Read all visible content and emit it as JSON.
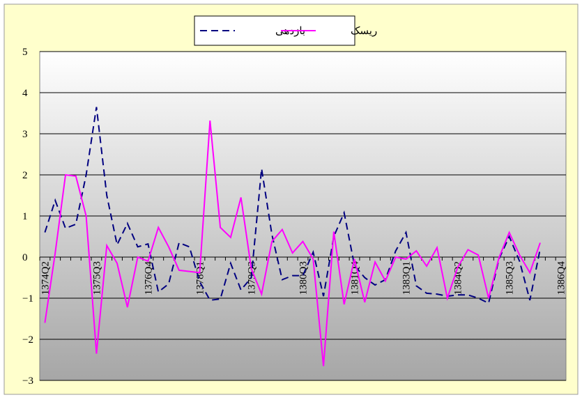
{
  "chart_data": {
    "type": "line",
    "categories": [
      "1374Q2",
      null,
      null,
      null,
      null,
      "1375Q3",
      null,
      null,
      null,
      null,
      "1376Q4",
      null,
      null,
      null,
      null,
      "1378Q1",
      null,
      null,
      null,
      null,
      "1379Q3",
      null,
      null,
      null,
      null,
      "1380Q3",
      null,
      null,
      null,
      null,
      "1381Q4",
      null,
      null,
      null,
      null,
      "1383Q1",
      null,
      null,
      null,
      null,
      "1384Q2",
      null,
      null,
      null,
      null,
      "1385Q3",
      null,
      null,
      null,
      null,
      "1386Q4"
    ],
    "series": [
      {
        "name": "بازدهی",
        "color": "#000080",
        "dash": true,
        "values": [
          0.6,
          1.38,
          0.7,
          0.8,
          2.0,
          3.65,
          1.5,
          0.3,
          0.82,
          0.25,
          0.32,
          -0.85,
          -0.65,
          0.35,
          0.25,
          -0.6,
          -1.05,
          -1.02,
          -0.15,
          -0.8,
          -0.5,
          2.15,
          0.55,
          -0.55,
          -0.45,
          -0.45,
          0.12,
          -0.95,
          0.5,
          1.08,
          -0.2,
          -0.5,
          -0.68,
          -0.55,
          0.15,
          0.6,
          -0.7,
          -0.88,
          -0.9,
          -0.95,
          -0.92,
          -0.92,
          -1.0,
          -1.12,
          -0.05,
          0.5,
          -0.1,
          -1.05,
          0.2,
          null,
          null
        ]
      },
      {
        "name": "ریسک",
        "color": "#ff00ff",
        "dash": false,
        "values": [
          -1.6,
          0.1,
          2.0,
          1.97,
          1.0,
          -2.35,
          0.28,
          -0.15,
          -1.22,
          0.0,
          -0.1,
          0.72,
          0.25,
          -0.32,
          -0.35,
          -0.38,
          3.32,
          0.72,
          0.48,
          1.45,
          -0.28,
          -0.9,
          0.38,
          0.67,
          0.1,
          0.38,
          -0.05,
          -2.65,
          0.62,
          -1.15,
          -0.05,
          -1.1,
          -0.12,
          -0.58,
          0.0,
          -0.05,
          0.15,
          -0.22,
          0.23,
          -1.0,
          -0.25,
          0.18,
          0.05,
          -1.0,
          -0.02,
          0.6,
          0.05,
          -0.38,
          0.35,
          null,
          null
        ]
      }
    ],
    "ylim": [
      -3,
      5
    ],
    "yticks": [
      {
        "value": -3,
        "label": "−3"
      },
      {
        "value": -2,
        "label": "−2"
      },
      {
        "value": -1,
        "label": "−1"
      },
      0,
      1,
      2,
      3,
      4,
      5
    ],
    "grid": true
  }
}
